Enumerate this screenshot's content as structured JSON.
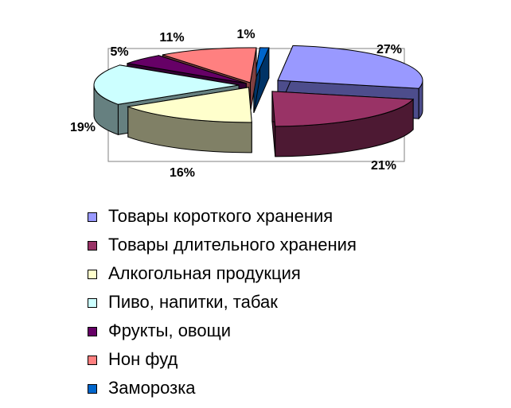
{
  "chart_data": {
    "type": "pie",
    "style": "3d-exploded",
    "title": "",
    "legend_position": "bottom",
    "slices": [
      {
        "name": "Товары короткого хранения",
        "value": 27,
        "label": "27%",
        "color": "#9999FF",
        "side_color": "#4D4D8C"
      },
      {
        "name": "Товары длительного хранения",
        "value": 21,
        "label": "21%",
        "color": "#993366",
        "side_color": "#4D1933"
      },
      {
        "name": "Алкогольная продукция",
        "value": 16,
        "label": "16%",
        "color": "#FFFFCC",
        "side_color": "#808066"
      },
      {
        "name": "Пиво, напитки, табак",
        "value": 19,
        "label": "19%",
        "color": "#CCFFFF",
        "side_color": "#668080"
      },
      {
        "name": "Фрукты, овощи",
        "value": 5,
        "label": "5%",
        "color": "#660066",
        "side_color": "#330033"
      },
      {
        "name": "Нон фуд",
        "value": 11,
        "label": "11%",
        "color": "#FF8080",
        "side_color": "#804040"
      },
      {
        "name": "Заморозка",
        "value": 1,
        "label": "1%",
        "color": "#0066CC",
        "side_color": "#003366"
      }
    ]
  }
}
